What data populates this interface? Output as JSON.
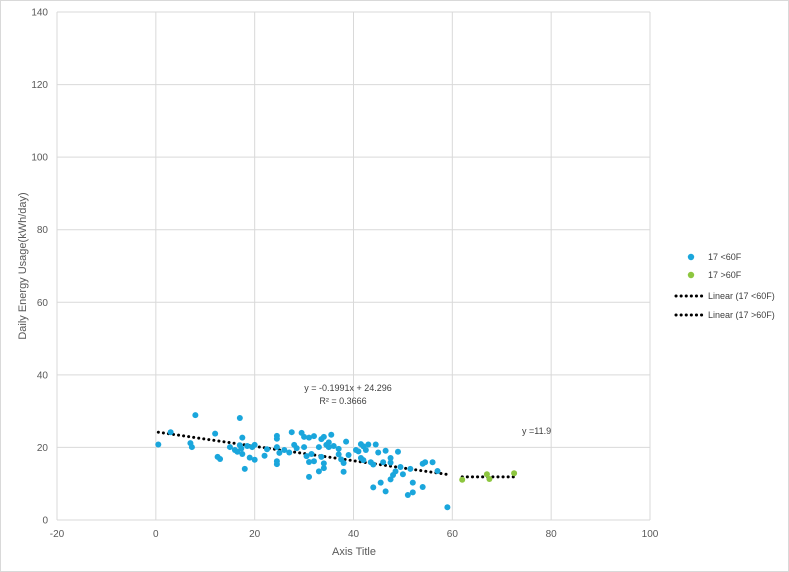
{
  "chart_data": {
    "type": "scatter",
    "xlabel": "Axis Title",
    "ylabel": "Daily Energy Usage(kWh/day)",
    "xlim": [
      -20,
      100
    ],
    "ylim": [
      0,
      140
    ],
    "xticks": [
      -20,
      0,
      20,
      40,
      60,
      80,
      100
    ],
    "yticks": [
      0,
      20,
      40,
      60,
      80,
      100,
      120,
      140
    ],
    "xtick_labels": [
      "-20",
      "0",
      "20",
      "40",
      "60",
      "80",
      "100"
    ],
    "ytick_labels": [
      "0",
      "20",
      "40",
      "60",
      "80",
      "100",
      "120",
      "140"
    ],
    "grid": true,
    "legend_position": "right",
    "series": [
      {
        "name": "17 <60F",
        "color": "#1aa6dc",
        "points": [
          [
            0.5,
            20.8
          ],
          [
            3,
            24.2
          ],
          [
            7,
            21.2
          ],
          [
            7.3,
            20.1
          ],
          [
            8,
            28.9
          ],
          [
            12,
            23.8
          ],
          [
            12.5,
            17.4
          ],
          [
            13,
            16.8
          ],
          [
            15,
            20.1
          ],
          [
            16,
            19.3
          ],
          [
            16.5,
            18.8
          ],
          [
            17,
            28.1
          ],
          [
            17,
            20.6
          ],
          [
            17.3,
            19.7
          ],
          [
            17.5,
            22.7
          ],
          [
            17.5,
            18.2
          ],
          [
            18,
            14.1
          ],
          [
            18.5,
            20.4
          ],
          [
            19,
            17.2
          ],
          [
            19.5,
            20.1
          ],
          [
            20,
            16.6
          ],
          [
            20,
            20.7
          ],
          [
            22,
            17.7
          ],
          [
            22.5,
            19.5
          ],
          [
            24.5,
            23.2
          ],
          [
            24.5,
            22.4
          ],
          [
            24.5,
            20.1
          ],
          [
            24.5,
            16.2
          ],
          [
            24.5,
            15.4
          ],
          [
            25,
            18.5
          ],
          [
            26,
            19.3
          ],
          [
            27,
            18.6
          ],
          [
            27.5,
            24.2
          ],
          [
            28,
            20.7
          ],
          [
            28.5,
            19.8
          ],
          [
            29.5,
            24
          ],
          [
            30,
            22.9
          ],
          [
            30,
            20.1
          ],
          [
            30.5,
            17.6
          ],
          [
            31,
            22.7
          ],
          [
            31,
            16
          ],
          [
            31,
            11.9
          ],
          [
            31.5,
            18.2
          ],
          [
            32,
            23.1
          ],
          [
            32,
            16.2
          ],
          [
            33,
            20.1
          ],
          [
            33,
            13.4
          ],
          [
            33.5,
            22.3
          ],
          [
            33.5,
            17.4
          ],
          [
            34,
            22.9
          ],
          [
            34,
            15.6
          ],
          [
            34,
            14.3
          ],
          [
            34.5,
            20.7
          ],
          [
            35,
            20.1
          ],
          [
            35,
            21.4
          ],
          [
            35.5,
            23.5
          ],
          [
            36,
            20.4
          ],
          [
            37,
            19.6
          ],
          [
            37,
            18.1
          ],
          [
            37.5,
            16.7
          ],
          [
            38,
            15.7
          ],
          [
            38,
            13.3
          ],
          [
            38.5,
            21.6
          ],
          [
            39,
            17.9
          ],
          [
            40.5,
            19.3
          ],
          [
            41,
            18.9
          ],
          [
            41.5,
            20.9
          ],
          [
            41.5,
            17.1
          ],
          [
            42,
            16.5
          ],
          [
            42,
            20.3
          ],
          [
            42.5,
            19.3
          ],
          [
            43,
            20.8
          ],
          [
            43.5,
            15.9
          ],
          [
            44,
            15.3
          ],
          [
            44,
            9
          ],
          [
            44.5,
            20.8
          ],
          [
            45,
            18.6
          ],
          [
            45.5,
            10.3
          ],
          [
            46,
            15.9
          ],
          [
            46.5,
            19.1
          ],
          [
            46.5,
            7.9
          ],
          [
            47.5,
            17.1
          ],
          [
            47.5,
            15.8
          ],
          [
            47.5,
            11.2
          ],
          [
            48,
            12.4
          ],
          [
            48.5,
            13.4
          ],
          [
            49,
            18.8
          ],
          [
            49.5,
            14.6
          ],
          [
            50,
            12.6
          ],
          [
            51,
            6.9
          ],
          [
            51.5,
            14.1
          ],
          [
            52,
            10.3
          ],
          [
            52,
            7.6
          ],
          [
            54,
            15.5
          ],
          [
            54,
            9.1
          ],
          [
            54.5,
            15.9
          ],
          [
            56,
            15.9
          ],
          [
            57,
            13.5
          ],
          [
            59,
            3.5
          ]
        ]
      },
      {
        "name": "17 >60F",
        "color": "#8dc63f",
        "points": [
          [
            62,
            11.1
          ],
          [
            67,
            12.6
          ],
          [
            67.5,
            11.3
          ],
          [
            72.5,
            12.9
          ]
        ]
      }
    ],
    "trendlines": [
      {
        "name": "Linear (17 <60F)",
        "slope": -0.1991,
        "intercept": 24.296,
        "x_range": [
          0.5,
          59
        ],
        "equation": "y = -0.1991x + 24.296",
        "r2": "R² = 0.3666"
      },
      {
        "name": "Linear (17 >60F)",
        "slope": 0,
        "intercept": 11.9,
        "x_range": [
          62,
          72.5
        ],
        "equation": "y =11.9"
      }
    ]
  }
}
